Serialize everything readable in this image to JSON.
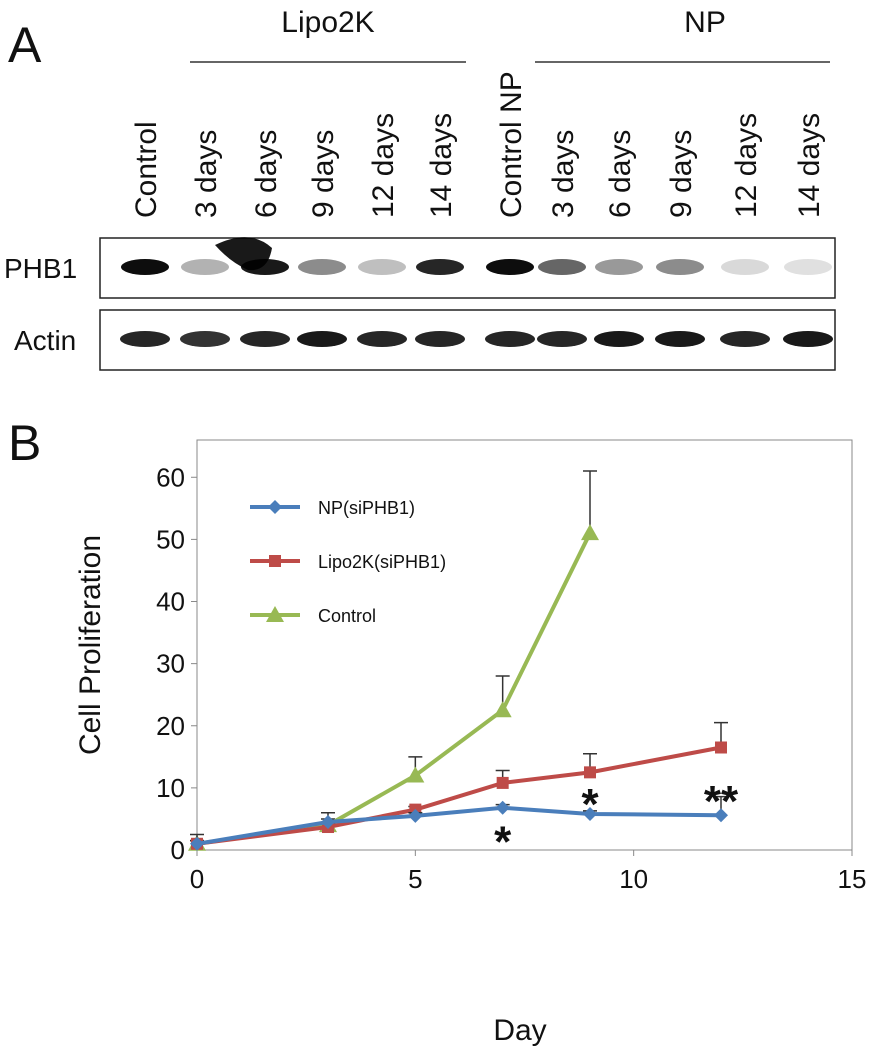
{
  "panel_a": {
    "label": "A",
    "groups": [
      {
        "name": "Lipo2K"
      },
      {
        "name": "NP"
      }
    ],
    "lanes": [
      "Control",
      "3 days",
      "6 days",
      "9 days",
      "12 days",
      "14 days",
      "Control NP",
      "3 days",
      "6 days",
      "9 days",
      "12 days",
      "14 days"
    ],
    "rows": [
      "PHB1",
      "Actin"
    ]
  },
  "panel_b": {
    "label": "B"
  },
  "chart_data": {
    "type": "line",
    "x_label": "Day",
    "y_label": "Cell Proliferation",
    "x": [
      0,
      3,
      5,
      7,
      9,
      12
    ],
    "series": [
      {
        "name": "NP(siPHB1)",
        "color": "#4a7ebb",
        "marker": "diamond",
        "values": [
          1,
          4.5,
          5.5,
          6.8,
          5.8,
          5.6
        ],
        "errors": [
          1.5,
          1.5,
          0.5,
          0.5,
          0.5,
          3
        ]
      },
      {
        "name": "Lipo2K(siPHB1)",
        "color": "#be4b48",
        "marker": "square",
        "values": [
          1,
          3.7,
          6.5,
          10.8,
          12.5,
          16.5
        ],
        "errors": [
          0.5,
          0.5,
          0.5,
          2,
          3,
          4
        ]
      },
      {
        "name": "Control",
        "color": "#98b954",
        "marker": "triangle",
        "values": [
          1,
          4,
          12,
          22.5,
          51,
          null
        ],
        "errors": [
          0.5,
          1,
          3,
          5.5,
          10,
          null
        ]
      }
    ],
    "annotations": [
      {
        "text": "*",
        "x": 7,
        "y": 2.5
      },
      {
        "text": "*",
        "x": 9,
        "y": 8.5
      },
      {
        "text": "**",
        "x": 12,
        "y": 9
      }
    ],
    "xlim": [
      0,
      15
    ],
    "xticks": [
      0,
      5,
      10,
      15
    ],
    "ylim": [
      0,
      66
    ],
    "yticks": [
      0,
      10,
      20,
      30,
      40,
      50,
      60
    ],
    "grid": false,
    "legend": "upper left"
  }
}
